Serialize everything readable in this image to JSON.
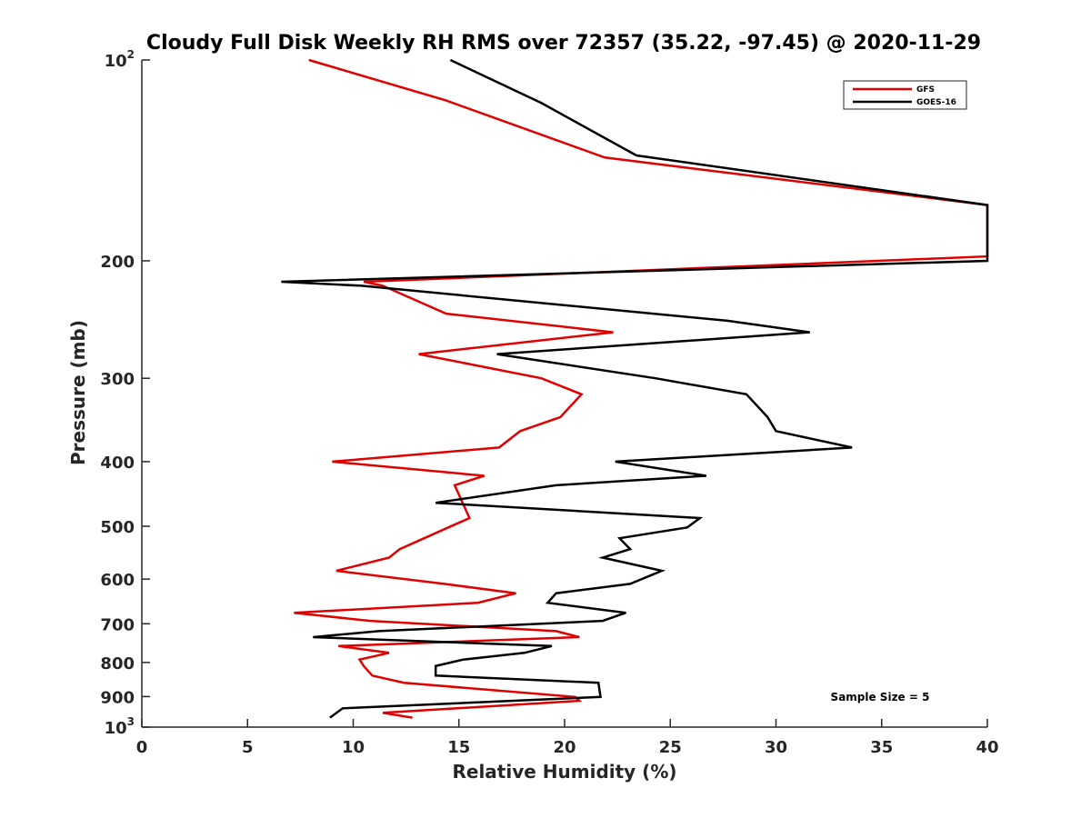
{
  "chart_data": {
    "type": "line",
    "title": "Cloudy Full Disk Weekly RH RMS over 72357 (35.22, -97.45) @ 2020-11-29",
    "xlabel": "Relative Humidity (%)",
    "ylabel": "Pressure (mb)",
    "xlim": [
      0,
      40
    ],
    "ylim": [
      100,
      1000
    ],
    "yscale": "log",
    "yreversed": true,
    "grid": false,
    "legend_position": "top-right",
    "xticks": [
      {
        "value": 0,
        "label": "0"
      },
      {
        "value": 5,
        "label": "5"
      },
      {
        "value": 10,
        "label": "10"
      },
      {
        "value": 15,
        "label": "15"
      },
      {
        "value": 20,
        "label": "20"
      },
      {
        "value": 25,
        "label": "25"
      },
      {
        "value": 30,
        "label": "30"
      },
      {
        "value": 35,
        "label": "35"
      },
      {
        "value": 40,
        "label": "40"
      }
    ],
    "yticks": [
      {
        "value": 100,
        "label": "10",
        "exp": "2"
      },
      {
        "value": 200,
        "label": "200",
        "exp": ""
      },
      {
        "value": 300,
        "label": "300",
        "exp": ""
      },
      {
        "value": 400,
        "label": "400",
        "exp": ""
      },
      {
        "value": 500,
        "label": "500",
        "exp": ""
      },
      {
        "value": 600,
        "label": "600",
        "exp": ""
      },
      {
        "value": 700,
        "label": "700",
        "exp": ""
      },
      {
        "value": 800,
        "label": "800",
        "exp": ""
      },
      {
        "value": 900,
        "label": "900",
        "exp": ""
      },
      {
        "value": 1000,
        "label": "10",
        "exp": "3"
      }
    ],
    "series": [
      {
        "name": "GFS",
        "color": "#e00000",
        "points": [
          [
            7.9,
            100
          ],
          [
            14.4,
            115
          ],
          [
            21.9,
            140
          ],
          [
            40,
            165
          ],
          [
            40,
            197
          ],
          [
            10.5,
            215
          ],
          [
            11.4,
            218
          ],
          [
            14.4,
            240
          ],
          [
            22.3,
            256
          ],
          [
            13.1,
            276
          ],
          [
            18.9,
            300
          ],
          [
            20.8,
            317
          ],
          [
            19.8,
            343
          ],
          [
            17.9,
            360
          ],
          [
            16.9,
            381
          ],
          [
            9.0,
            400
          ],
          [
            16.2,
            420
          ],
          [
            14.8,
            434
          ],
          [
            15.5,
            486
          ],
          [
            14.5,
            502
          ],
          [
            12.2,
            541
          ],
          [
            11.7,
            557
          ],
          [
            9.2,
            583
          ],
          [
            14.3,
            610
          ],
          [
            17.7,
            630
          ],
          [
            15.9,
            651
          ],
          [
            7.2,
            674
          ],
          [
            10.8,
            693
          ],
          [
            19.6,
            718
          ],
          [
            20.7,
            733
          ],
          [
            9.3,
            756
          ],
          [
            11.7,
            774
          ],
          [
            10.3,
            792
          ],
          [
            10.5,
            810
          ],
          [
            10.9,
            837
          ],
          [
            12.4,
            858
          ],
          [
            20.5,
            901
          ],
          [
            20.7,
            913
          ],
          [
            11.4,
            952
          ],
          [
            12.8,
            968
          ]
        ]
      },
      {
        "name": "GOES-16",
        "color": "#000000",
        "points": [
          [
            14.6,
            100
          ],
          [
            18.9,
            116
          ],
          [
            23.4,
            139
          ],
          [
            40,
            165
          ],
          [
            40,
            200
          ],
          [
            6.6,
            215
          ],
          [
            10.4,
            218
          ],
          [
            27.7,
            246
          ],
          [
            31.6,
            256
          ],
          [
            16.8,
            276
          ],
          [
            24.3,
            300
          ],
          [
            28.6,
            317
          ],
          [
            29.6,
            343
          ],
          [
            30.0,
            360
          ],
          [
            33.6,
            381
          ],
          [
            22.4,
            400
          ],
          [
            26.7,
            420
          ],
          [
            19.6,
            434
          ],
          [
            13.9,
            461
          ],
          [
            26.4,
            486
          ],
          [
            25.8,
            502
          ],
          [
            22.6,
            521
          ],
          [
            23.1,
            541
          ],
          [
            21.8,
            557
          ],
          [
            24.6,
            583
          ],
          [
            23.1,
            610
          ],
          [
            19.6,
            630
          ],
          [
            19.2,
            651
          ],
          [
            22.9,
            674
          ],
          [
            21.8,
            693
          ],
          [
            11.2,
            718
          ],
          [
            8.1,
            733
          ],
          [
            19.4,
            756
          ],
          [
            18.1,
            774
          ],
          [
            15.2,
            792
          ],
          [
            13.9,
            810
          ],
          [
            13.9,
            837
          ],
          [
            21.6,
            858
          ],
          [
            21.7,
            901
          ],
          [
            9.5,
            937
          ],
          [
            8.9,
            968
          ]
        ]
      }
    ],
    "annotations": [
      {
        "text": "Sample Size = 5",
        "position": "bottom-right"
      }
    ]
  }
}
